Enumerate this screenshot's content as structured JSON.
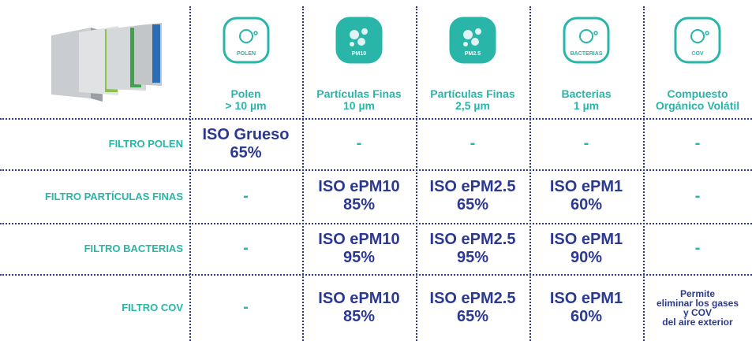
{
  "header": {
    "columns": [
      {
        "icon": "POLEN",
        "lines": [
          "Polen",
          "> 10 µm"
        ]
      },
      {
        "icon": "PM10",
        "lines": [
          "Partículas Finas",
          "10 µm"
        ]
      },
      {
        "icon": "PM2.5",
        "lines": [
          "Partículas Finas",
          "2,5 µm"
        ]
      },
      {
        "icon": "BACTERIAS",
        "lines": [
          "Bacterias",
          "1 µm"
        ]
      },
      {
        "icon": "COV",
        "lines": [
          "Compuesto",
          "Orgánico Volátil"
        ]
      }
    ]
  },
  "table": {
    "rows": [
      {
        "label": "FILTRO POLEN",
        "cells": [
          [
            "ISO Grueso",
            "65%"
          ],
          [
            "-"
          ],
          [
            "-"
          ],
          [
            "-"
          ],
          [
            "-"
          ]
        ]
      },
      {
        "label": "FILTRO PARTÍCULAS FINAS",
        "cells": [
          [
            "-"
          ],
          [
            "ISO ePM10",
            "85%"
          ],
          [
            "ISO ePM2.5",
            "65%"
          ],
          [
            "ISO ePM1",
            "60%"
          ],
          [
            "-"
          ]
        ]
      },
      {
        "label": "FILTRO BACTERIAS",
        "cells": [
          [
            "-"
          ],
          [
            "ISO ePM10",
            "95%"
          ],
          [
            "ISO ePM2.5",
            "95%"
          ],
          [
            "ISO ePM1",
            "90%"
          ],
          [
            "-"
          ]
        ]
      },
      {
        "label": "FILTRO COV",
        "cells": [
          [
            "-"
          ],
          [
            "ISO ePM10",
            "85%"
          ],
          [
            "ISO ePM2.5",
            "65%"
          ],
          [
            "ISO ePM1",
            "60%"
          ],
          [
            "Permite",
            "eliminar los gases",
            "y COV",
            "del aire exterior"
          ]
        ]
      }
    ]
  }
}
